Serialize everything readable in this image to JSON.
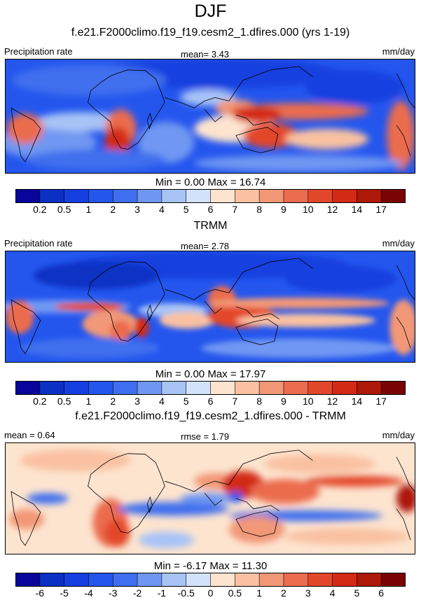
{
  "title": "DJF",
  "colors": {
    "precip_scale": [
      "#08059c",
      "#0a30c4",
      "#1540df",
      "#2456ee",
      "#3f6fee",
      "#6f97f2",
      "#a7c3f6",
      "#d2e2fb",
      "#fde4cf",
      "#f9c1a1",
      "#f29877",
      "#eb6c4e",
      "#e3472b",
      "#d32a15",
      "#ad1808",
      "#7a0303"
    ],
    "diff_scale": [
      "#08059c",
      "#0a30c4",
      "#1540df",
      "#2456ee",
      "#3f6fee",
      "#6f97f2",
      "#a7c3f6",
      "#d2e2fb",
      "#fde4cf",
      "#f9c1a1",
      "#f29877",
      "#eb6c4e",
      "#e3472b",
      "#d32a15",
      "#ad1808",
      "#7a0303"
    ]
  },
  "panels": [
    {
      "title": "f.e21.F2000climo.f19_f19.cesm2_1.dfires.000 (yrs 1-19)",
      "left_label": "Precipitation rate",
      "center_label": "mean=   3.43",
      "units": "mm/day",
      "minmax": "Min =   0.00 Max =  16.74",
      "ticks": [
        "0.2",
        "0.5",
        "1",
        "2",
        "3",
        "4",
        "5",
        "6",
        "7",
        "8",
        "9",
        "10",
        "12",
        "14",
        "17"
      ]
    },
    {
      "title": "TRMM",
      "left_label": "Precipitation rate",
      "center_label": "mean=   2.78",
      "units": "mm/day",
      "minmax": "Min =   0.00 Max =  17.97",
      "ticks": [
        "0.2",
        "0.5",
        "1",
        "2",
        "3",
        "4",
        "5",
        "6",
        "7",
        "8",
        "9",
        "10",
        "12",
        "14",
        "17"
      ]
    },
    {
      "title": "f.e21.F2000climo.f19_f19.cesm2_1.dfires.000 - TRMM",
      "left_label": "mean =   0.64",
      "center_label": "rmse =   1.79",
      "units": "mm/day",
      "minmax": "Min =  -6.17 Max =  11.30",
      "ticks": [
        "-6",
        "-5",
        "-4",
        "-3",
        "-2",
        "-1",
        "-0.5",
        "0",
        "0.5",
        "1",
        "2",
        "3",
        "4",
        "5",
        "6"
      ]
    }
  ]
}
